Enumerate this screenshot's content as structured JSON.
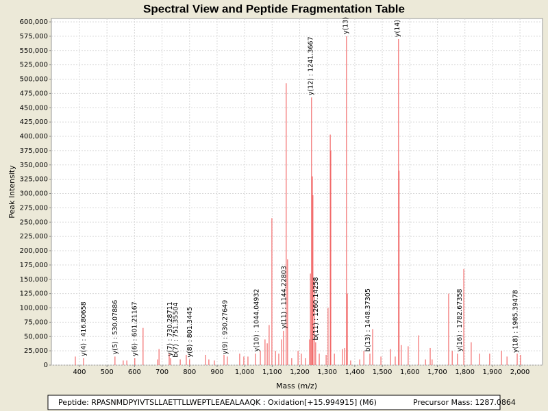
{
  "chart_data": {
    "type": "stick",
    "title": "Spectral View and Peptide Fragmentation Table",
    "x_label": "Mass (m/z)",
    "y_label": "Peak Intensity",
    "peptide": "Peptide: RPASNMDPYIVTSLLAETTLLWEPTLEAEALAAQK : Oxidation[+15.994915] (M6)",
    "precursor": "Precursor Mass: 1287.0864",
    "color": "#f26b6b",
    "grid": true,
    "xlim": [
      298,
      2082
    ],
    "ylim": [
      0,
      606000
    ],
    "xticks": [
      400,
      500,
      600,
      700,
      800,
      900,
      {
        "value": 1000,
        "label": "1,000"
      },
      {
        "value": 1100,
        "label": "1,100"
      },
      {
        "value": 1200,
        "label": "1,200"
      },
      {
        "value": 1300,
        "label": "1,300"
      },
      {
        "value": 1400,
        "label": "1,400"
      },
      {
        "value": 1500,
        "label": "1,500"
      },
      {
        "value": 1600,
        "label": "1,600"
      },
      {
        "value": 1700,
        "label": "1,700"
      },
      {
        "value": 1800,
        "label": "1,800"
      },
      {
        "value": 1900,
        "label": "1,900"
      },
      {
        "value": 2000,
        "label": "2,000"
      }
    ],
    "yticks": [
      0,
      {
        "value": 25000,
        "label": "25,000"
      },
      {
        "value": 50000,
        "label": "50,000"
      },
      {
        "value": 75000,
        "label": "75,000"
      },
      {
        "value": 100000,
        "label": "100,000"
      },
      {
        "value": 125000,
        "label": "125,000"
      },
      {
        "value": 150000,
        "label": "150,000"
      },
      {
        "value": 175000,
        "label": "175,000"
      },
      {
        "value": 200000,
        "label": "200,000"
      },
      {
        "value": 225000,
        "label": "225,000"
      },
      {
        "value": 250000,
        "label": "250,000"
      },
      {
        "value": 275000,
        "label": "275,000"
      },
      {
        "value": 300000,
        "label": "300,000"
      },
      {
        "value": 325000,
        "label": "325,000"
      },
      {
        "value": 350000,
        "label": "350,000"
      },
      {
        "value": 375000,
        "label": "375,000"
      },
      {
        "value": 400000,
        "label": "400,000"
      },
      {
        "value": 425000,
        "label": "425,000"
      },
      {
        "value": 450000,
        "label": "450,000"
      },
      {
        "value": 475000,
        "label": "475,000"
      },
      {
        "value": 500000,
        "label": "500,000"
      },
      {
        "value": 525000,
        "label": "525,000"
      },
      {
        "value": 550000,
        "label": "550,000"
      },
      {
        "value": 575000,
        "label": "575,000"
      },
      {
        "value": 600000,
        "label": "600,000"
      }
    ],
    "x": [
      385,
      415,
      529,
      559,
      572,
      601,
      631,
      684,
      689,
      726,
      731,
      766,
      788,
      800,
      858,
      870,
      890,
      925,
      937,
      982,
      997,
      1012,
      1039,
      1057,
      1074,
      1082,
      1089,
      1099,
      1112,
      1124,
      1134,
      1141,
      1151,
      1156,
      1171,
      1194,
      1206,
      1221,
      1236,
      1239,
      1243,
      1246,
      1248,
      1253,
      1258,
      1271,
      1296,
      1303,
      1311,
      1313,
      1326,
      1355,
      1363,
      1370,
      1373,
      1385,
      1418,
      1433,
      1455,
      1465,
      1495,
      1530,
      1547,
      1559,
      1561,
      1569,
      1594,
      1632,
      1657,
      1674,
      1681,
      1741,
      1754,
      1773,
      1796,
      1823,
      1853,
      1890,
      1933,
      1953,
      1990,
      2002
    ],
    "values": [
      15000,
      12000,
      15000,
      8000,
      8000,
      12000,
      65000,
      10000,
      28000,
      20000,
      12000,
      10000,
      18000,
      10000,
      18000,
      10000,
      8000,
      18000,
      15000,
      20000,
      15000,
      15000,
      20000,
      25000,
      45000,
      38000,
      70000,
      257000,
      25000,
      20000,
      45000,
      60000,
      493000,
      185000,
      12000,
      25000,
      20000,
      12000,
      45000,
      160000,
      468000,
      330000,
      297000,
      150000,
      40000,
      20000,
      18000,
      100000,
      403000,
      375000,
      20000,
      28000,
      30000,
      575000,
      125000,
      8000,
      10000,
      25000,
      20000,
      63000,
      15000,
      28000,
      15000,
      570000,
      340000,
      35000,
      33000,
      52000,
      10000,
      30000,
      10000,
      125000,
      25000,
      20000,
      168000,
      40000,
      20000,
      20000,
      25000,
      15000,
      20000,
      18000
    ],
    "annotations": [
      {
        "text": "y(4) : 416.80658",
        "x": 416.80658,
        "y": 12000
      },
      {
        "text": "y(5) : 530.07886",
        "x": 530.07886,
        "y": 15000
      },
      {
        "text": "y(6) : 601.21167",
        "x": 601.21167,
        "y": 12000
      },
      {
        "text": "y(7) : 730.28711",
        "x": 730.28711,
        "y": 12000
      },
      {
        "text": "b(7) : 751.35504",
        "x": 751.35504,
        "y": 10000
      },
      {
        "text": "y(8) : 801.3445",
        "x": 801.3445,
        "y": 10000
      },
      {
        "text": "y(9) : 930.27649",
        "x": 930.27649,
        "y": 15000
      },
      {
        "text": "y(10) : 1044.04932",
        "x": 1044.04932,
        "y": 20000
      },
      {
        "text": "y(11) : 1144.22803",
        "x": 1144.22803,
        "y": 60000
      },
      {
        "text": "y(12) : 1241.3667",
        "x": 1241.3667,
        "y": 468000
      },
      {
        "text": "b(11) : 1260.14258",
        "x": 1260.14258,
        "y": 40000
      },
      {
        "text": "y(13)",
        "x": 1368,
        "y": 575000
      },
      {
        "text": "y(14)",
        "x": 1556,
        "y": 570000
      },
      {
        "text": "b(13) : 1448.37305",
        "x": 1448.37305,
        "y": 20000
      },
      {
        "text": "y(16) : 1782.67358",
        "x": 1782.67358,
        "y": 20000
      },
      {
        "text": "y(18) : 1985.39478",
        "x": 1985.39478,
        "y": 18000
      }
    ]
  }
}
